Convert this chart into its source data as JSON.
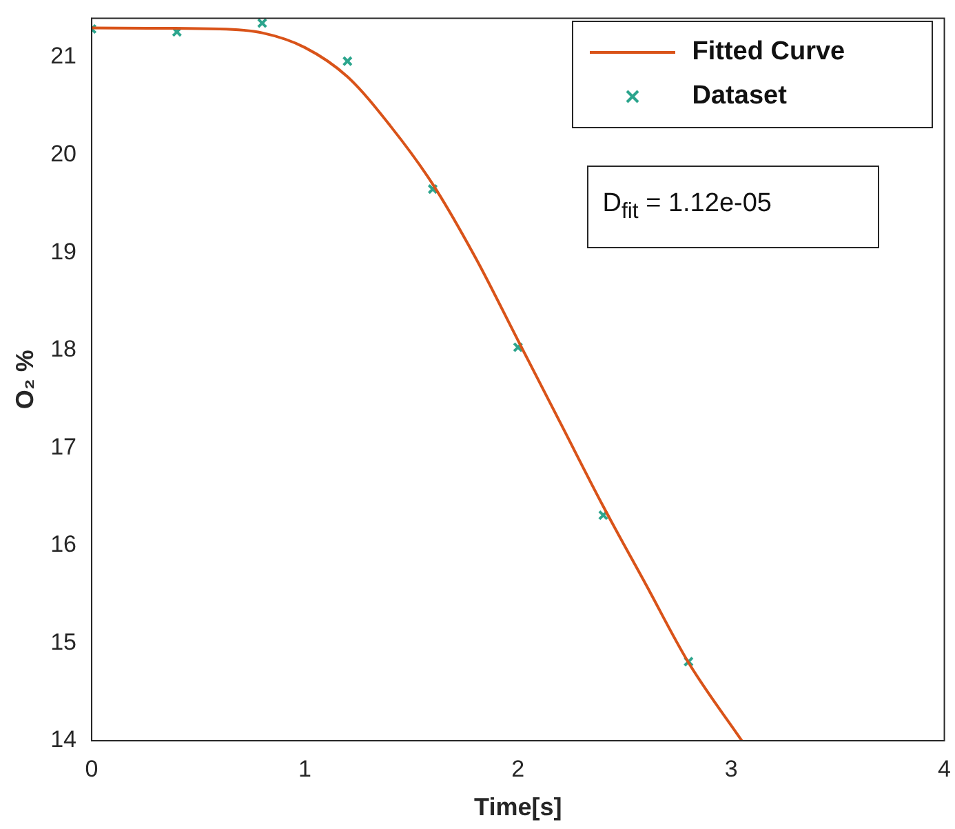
{
  "chart_data": {
    "type": "scatter",
    "xlabel": "Time[s]",
    "ylabel": "O₂ %",
    "xlim": [
      0,
      4
    ],
    "xticks": [
      0,
      1,
      2,
      3,
      4
    ],
    "ylim": [
      14,
      21.4
    ],
    "yticks": [
      14,
      15,
      16,
      17,
      18,
      19,
      20,
      21
    ],
    "grid": false,
    "legend": "top right",
    "annotations": [
      "D$_{fit}$ = 1.12e-05"
    ],
    "series": [
      {
        "name": "Fitted Curve",
        "type": "line",
        "color": "#d95319",
        "marker": "none",
        "line_style": "solid",
        "x": [
          0,
          0.6,
          0.8,
          1.0,
          1.2,
          1.4,
          1.6,
          1.8,
          2.0,
          2.2,
          2.4,
          2.6,
          2.8,
          3.05
        ],
        "values": [
          21.3,
          21.29,
          21.25,
          21.1,
          20.8,
          20.3,
          19.7,
          18.95,
          18.1,
          17.25,
          16.4,
          15.6,
          14.8,
          14.0
        ]
      },
      {
        "name": "Dataset",
        "color": "#2ca58d",
        "marker": "cross",
        "x": [
          0,
          0.4,
          0.8,
          1.2,
          1.6,
          2.0,
          2.4,
          2.8
        ],
        "values": [
          21.29,
          21.26,
          21.35,
          20.96,
          19.65,
          18.03,
          16.31,
          14.81
        ]
      }
    ]
  }
}
